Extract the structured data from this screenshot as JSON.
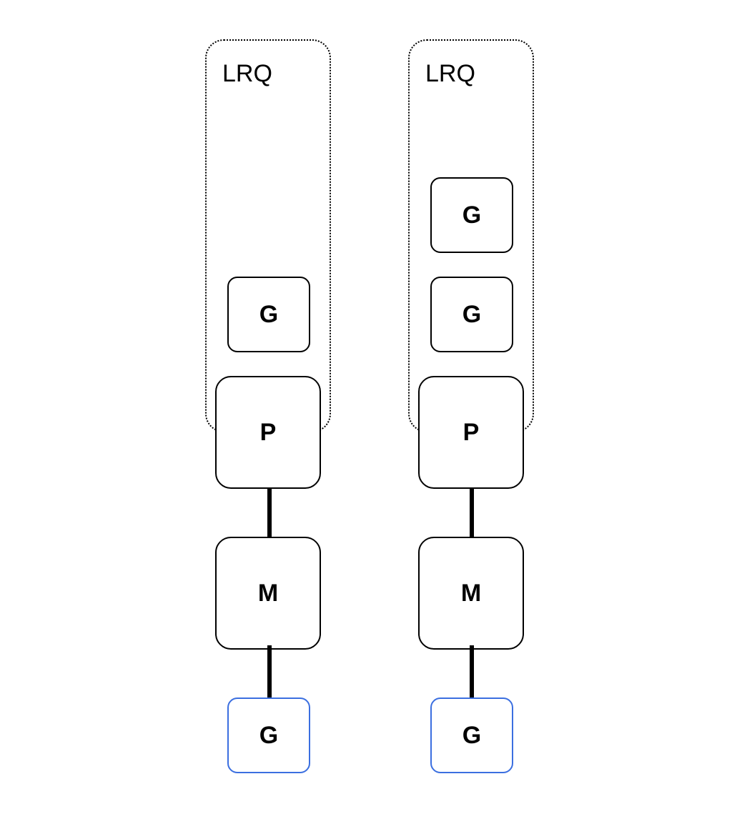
{
  "columns": [
    {
      "lrq_label": "LRQ",
      "queue": [
        "G"
      ],
      "p_label": "P",
      "m_label": "M",
      "running_g_label": "G"
    },
    {
      "lrq_label": "LRQ",
      "queue": [
        "G",
        "G"
      ],
      "p_label": "P",
      "m_label": "M",
      "running_g_label": "G"
    }
  ],
  "colors": {
    "border": "#000000",
    "running_goroutine_border": "#3b6fe0",
    "background": "#ffffff"
  }
}
